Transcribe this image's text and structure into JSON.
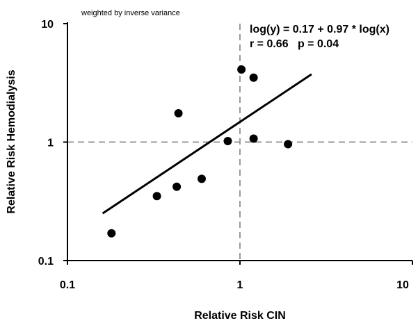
{
  "chart_data": {
    "type": "scatter",
    "x_scale": "log",
    "y_scale": "log",
    "xlim": [
      0.1,
      10
    ],
    "ylim": [
      0.1,
      10
    ],
    "xlabel": "Relative Risk CIN",
    "ylabel": "Relative Risk Hemodialysis",
    "note": "weighted by inverse variance",
    "x_ticks": [
      "0.1",
      "1",
      "10"
    ],
    "y_ticks": [
      "0.1",
      "1",
      "10"
    ],
    "points": [
      {
        "x": 0.18,
        "y": 0.17
      },
      {
        "x": 0.33,
        "y": 0.35
      },
      {
        "x": 0.43,
        "y": 0.42
      },
      {
        "x": 0.44,
        "y": 1.75
      },
      {
        "x": 0.6,
        "y": 0.49
      },
      {
        "x": 0.85,
        "y": 1.02
      },
      {
        "x": 1.02,
        "y": 4.1
      },
      {
        "x": 1.2,
        "y": 3.5
      },
      {
        "x": 1.2,
        "y": 1.07
      },
      {
        "x": 1.9,
        "y": 0.96
      }
    ],
    "regression": {
      "intercept": 0.17,
      "slope": 0.97,
      "x_range": [
        0.16,
        2.6
      ]
    },
    "reference_lines": {
      "x": 1,
      "y": 1,
      "style": "dashed",
      "color": "#999999"
    },
    "annotations": [
      "log(y) = 0.17 + 0.97 * log(x)",
      "r = 0.66   p = 0.04"
    ],
    "grid": false,
    "legend": "none"
  }
}
